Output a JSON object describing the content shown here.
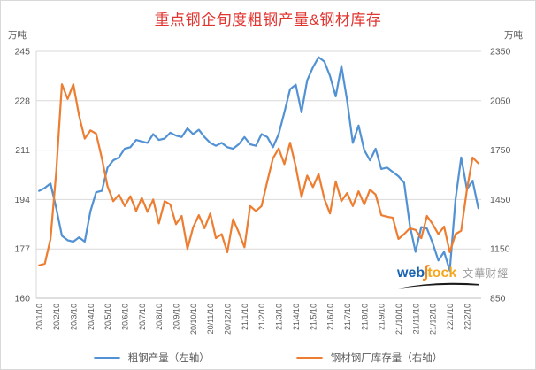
{
  "title": "重点钢企旬度粗钢产量&钢材库存",
  "unit_left": "万吨",
  "unit_right": "万吨",
  "colors": {
    "title": "#e0342f",
    "production_blue": "#5292d4",
    "inventory_orange": "#ed7d31",
    "axis_text": "#595959",
    "gridline": "#d9d9d9",
    "axis_line": "#bfbfbf"
  },
  "legend": [
    {
      "label": "粗钢产量（左轴）",
      "color": "#5292d4"
    },
    {
      "label": "钢材钢厂库存量（右轴）",
      "color": "#ed7d31"
    }
  ],
  "watermark": {
    "web": "web",
    "s": "∫",
    "tock": "tock",
    "cn": "文華财經"
  },
  "chart_data": {
    "type": "line",
    "title": "重点钢企旬度粗钢产量&钢材库存",
    "grid": true,
    "legend_position": "bottom",
    "y_left": {
      "min": 160,
      "max": 245,
      "ticks": [
        245,
        228,
        211,
        194,
        177,
        160
      ],
      "unit": "万吨"
    },
    "y_right": {
      "min": 850,
      "max": 2350,
      "ticks": [
        2350,
        2050,
        1750,
        1450,
        1150,
        850
      ],
      "unit": "万吨"
    },
    "x_tick_labels": [
      "20/1/10",
      "20/2/10",
      "20/3/10",
      "20/4/10",
      "20/5/10",
      "20/6/10",
      "20/7/10",
      "20/8/10",
      "20/9/10",
      "20/10/10",
      "20/11/10",
      "20/12/10",
      "21/1/10",
      "21/2/10",
      "21/3/10",
      "21/4/10",
      "21/5/10",
      "21/6/10",
      "21/7/10",
      "21/8/10",
      "21/9/10",
      "21/10/10",
      "21/11/10",
      "21/12/10",
      "22/1/10",
      "22/2/10"
    ],
    "x": [
      "20/1/10",
      "20/1/20",
      "20/1/31",
      "20/2/10",
      "20/2/20",
      "20/2/29",
      "20/3/10",
      "20/3/20",
      "20/3/31",
      "20/4/10",
      "20/4/20",
      "20/4/30",
      "20/5/10",
      "20/5/20",
      "20/5/31",
      "20/6/10",
      "20/6/20",
      "20/6/30",
      "20/7/10",
      "20/7/20",
      "20/7/31",
      "20/8/10",
      "20/8/20",
      "20/8/31",
      "20/9/10",
      "20/9/20",
      "20/9/30",
      "20/10/10",
      "20/10/20",
      "20/10/31",
      "20/11/10",
      "20/11/20",
      "20/11/30",
      "20/12/10",
      "20/12/20",
      "20/12/31",
      "21/1/10",
      "21/1/20",
      "21/1/31",
      "21/2/10",
      "21/2/20",
      "21/2/28",
      "21/3/10",
      "21/3/20",
      "21/3/31",
      "21/4/10",
      "21/4/20",
      "21/4/30",
      "21/5/10",
      "21/5/20",
      "21/5/31",
      "21/6/10",
      "21/6/20",
      "21/6/30",
      "21/7/10",
      "21/7/20",
      "21/7/31",
      "21/8/10",
      "21/8/20",
      "21/8/31",
      "21/9/10",
      "21/9/20",
      "21/9/30",
      "21/10/10",
      "21/10/20",
      "21/10/31",
      "21/11/10",
      "21/11/20",
      "21/11/30",
      "21/12/10",
      "21/12/20",
      "21/12/31",
      "22/1/10",
      "22/1/20",
      "22/1/31",
      "22/2/10",
      "22/2/20",
      "22/2/28"
    ],
    "series": [
      {
        "name": "粗钢产量（左轴）",
        "axis": "left",
        "color": "#5292d4",
        "values": [
          197,
          198,
          199.5,
          191,
          181.5,
          180,
          179.5,
          181,
          179.5,
          190,
          196.5,
          197,
          205,
          207.5,
          208.5,
          211.5,
          212,
          214.5,
          214,
          213.5,
          216.5,
          214.5,
          215,
          217,
          216,
          215.5,
          218.5,
          216.5,
          218,
          215.5,
          213.5,
          212.5,
          213.5,
          212,
          211.5,
          213,
          215.5,
          213,
          212.5,
          216.5,
          215.5,
          212,
          216.5,
          224,
          232,
          233.5,
          224,
          235,
          239.5,
          243,
          241.5,
          236.5,
          229.5,
          240,
          228,
          213.5,
          219.5,
          211,
          207.5,
          211.5,
          204.5,
          205,
          203.5,
          202,
          199.8,
          185,
          176,
          184.5,
          184,
          179,
          173,
          176,
          169.5,
          194,
          208.5,
          197.5,
          200.5,
          191
        ]
      },
      {
        "name": "钢材钢厂库存量（右轴）",
        "axis": "right",
        "color": "#ed7d31",
        "values": [
          1050,
          1060,
          1210,
          1620,
          2150,
          2060,
          2150,
          1960,
          1820,
          1870,
          1850,
          1700,
          1530,
          1440,
          1480,
          1410,
          1470,
          1380,
          1460,
          1375,
          1450,
          1305,
          1440,
          1420,
          1300,
          1350,
          1150,
          1280,
          1355,
          1275,
          1365,
          1215,
          1240,
          1130,
          1330,
          1250,
          1160,
          1410,
          1380,
          1410,
          1560,
          1700,
          1760,
          1665,
          1795,
          1650,
          1465,
          1595,
          1525,
          1605,
          1455,
          1365,
          1560,
          1440,
          1490,
          1410,
          1500,
          1420,
          1510,
          1480,
          1355,
          1345,
          1340,
          1210,
          1240,
          1275,
          1265,
          1215,
          1350,
          1300,
          1240,
          1285,
          1130,
          1240,
          1260,
          1510,
          1705,
          1670
        ]
      }
    ]
  }
}
